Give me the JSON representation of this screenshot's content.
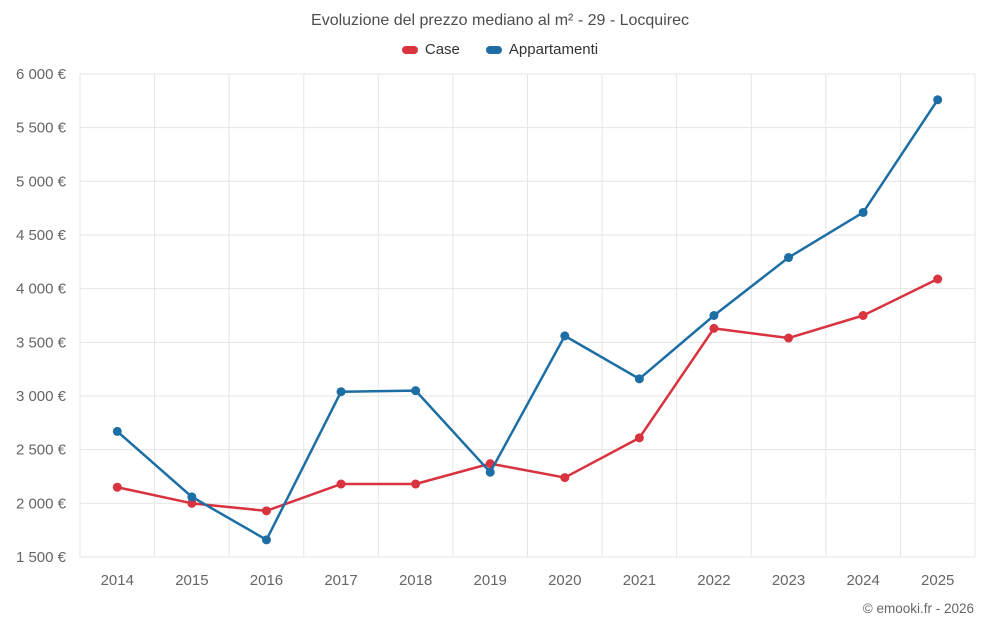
{
  "chart": {
    "title": "Evoluzione del prezzo mediano al m² - 29 - Locquirec",
    "footer_credit": "© emooki.fr - 2026"
  },
  "chart_data": {
    "type": "line",
    "title": "Evoluzione del prezzo mediano al m² - 29 - Locquirec",
    "categories": [
      "2014",
      "2015",
      "2016",
      "2017",
      "2018",
      "2019",
      "2020",
      "2021",
      "2022",
      "2023",
      "2024",
      "2025"
    ],
    "series": [
      {
        "name": "Case",
        "color": "#d8333f",
        "values": [
          2150,
          2000,
          1930,
          2180,
          2180,
          2370,
          2240,
          2610,
          3630,
          3540,
          3750,
          4090
        ]
      },
      {
        "name": "Appartamenti",
        "color": "#1c6ea4",
        "values": [
          2670,
          2060,
          1660,
          3040,
          3050,
          2290,
          3560,
          3160,
          3750,
          4290,
          4710,
          5760
        ]
      }
    ],
    "xlabel": "",
    "ylabel": "",
    "ylim": [
      1500,
      6000
    ],
    "ytick_step": 500,
    "ytick_suffix": " €",
    "grid": true,
    "legend_position": "top",
    "grid_color": "#e6e6e6",
    "tick_label_color": "#666666"
  }
}
